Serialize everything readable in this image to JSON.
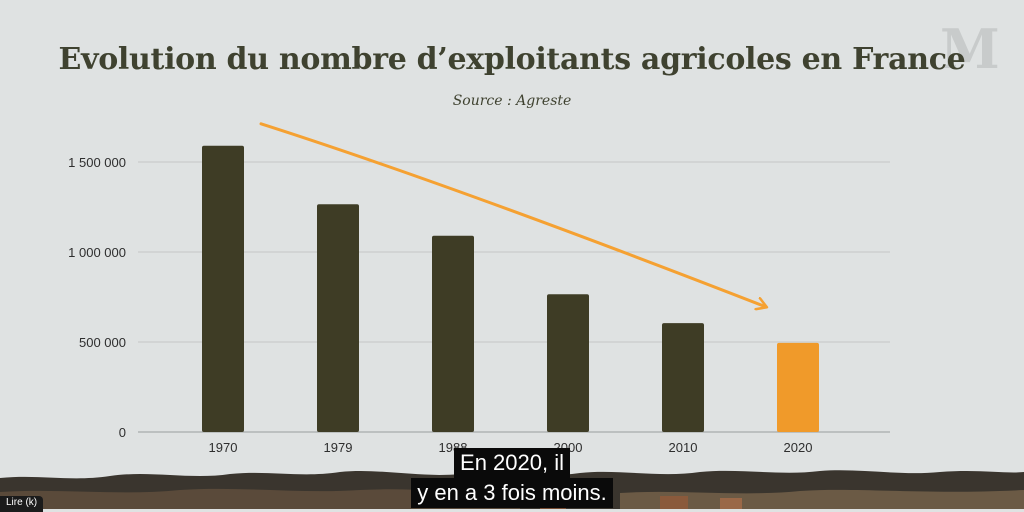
{
  "chart_data": {
    "type": "bar",
    "title": "Evolution du nombre d’exploitants agricoles en France",
    "subtitle": "Source : Agreste",
    "categories": [
      "1970",
      "1979",
      "1988",
      "2000",
      "2010",
      "2020"
    ],
    "values": [
      1590000,
      1265000,
      1090000,
      765000,
      605000,
      495000
    ],
    "ylim": [
      0,
      1650000
    ],
    "yticks": [
      0,
      500000,
      1000000,
      1500000
    ],
    "ytick_labels": [
      "0",
      "500 000",
      "1 000 000",
      "1 500 000"
    ],
    "grid": true,
    "bar_color": "#3e3c25",
    "highlight_color": "#f09a2a",
    "highlight_index": 5,
    "trend_arrow": {
      "from": "1970",
      "to": "2020",
      "color": "#f5a132"
    }
  },
  "logo": {
    "text": "M"
  },
  "caption": {
    "line1": "En 2020, il",
    "line2": "y en a 3 fois moins."
  },
  "corner_button": {
    "label": "Lire (k)"
  }
}
